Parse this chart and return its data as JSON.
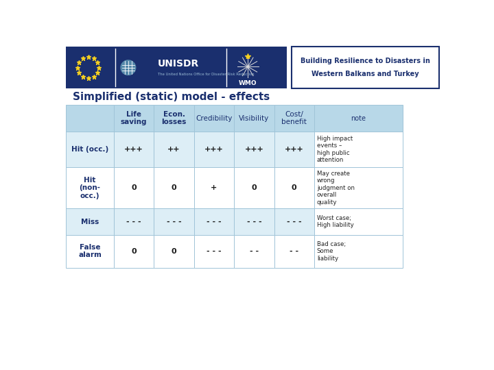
{
  "title": "Simplified (static) model - effects",
  "title_color": "#1a2f6e",
  "title_fontsize": 11,
  "header_bg": "#b8d8e8",
  "row_bg_light": "#ddeef6",
  "row_bg_white": "#ffffff",
  "header_text_color": "#1a2f6e",
  "cell_text_color": "#1a1a1a",
  "note_text_color": "#222222",
  "col_headers": [
    "Life\nsaving",
    "Econ.\nlosses",
    "Credibility",
    "Visibility",
    "Cost/\nbenefit",
    "note"
  ],
  "rows": [
    {
      "label": "Hit (occ.)",
      "values": [
        "+++",
        "++",
        "+++",
        "+++",
        "+++"
      ],
      "note": "High impact\nevents –\nhigh public\nattention"
    },
    {
      "label": "Hit\n(non-\nocc.)",
      "values": [
        "0",
        "0",
        "+",
        "0",
        "0"
      ],
      "note": "May create\nwrong\njudgment on\noverall\nquality"
    },
    {
      "label": "Miss",
      "values": [
        "- - -",
        "- - -",
        "- - -",
        "- - -",
        "- - -"
      ],
      "note": "Worst case;\nHigh liability"
    },
    {
      "label": "False\nalarm",
      "values": [
        "0",
        "0",
        "- - -",
        "- -",
        "- -"
      ],
      "note": "Bad case;\nSome\nliability"
    }
  ],
  "navy_bg": "#1a2f6e",
  "border_color": "#a0c4d8",
  "resilience_text1": "Building Resilience to Disasters in",
  "resilience_text2": "Western Balkans and Turkey"
}
